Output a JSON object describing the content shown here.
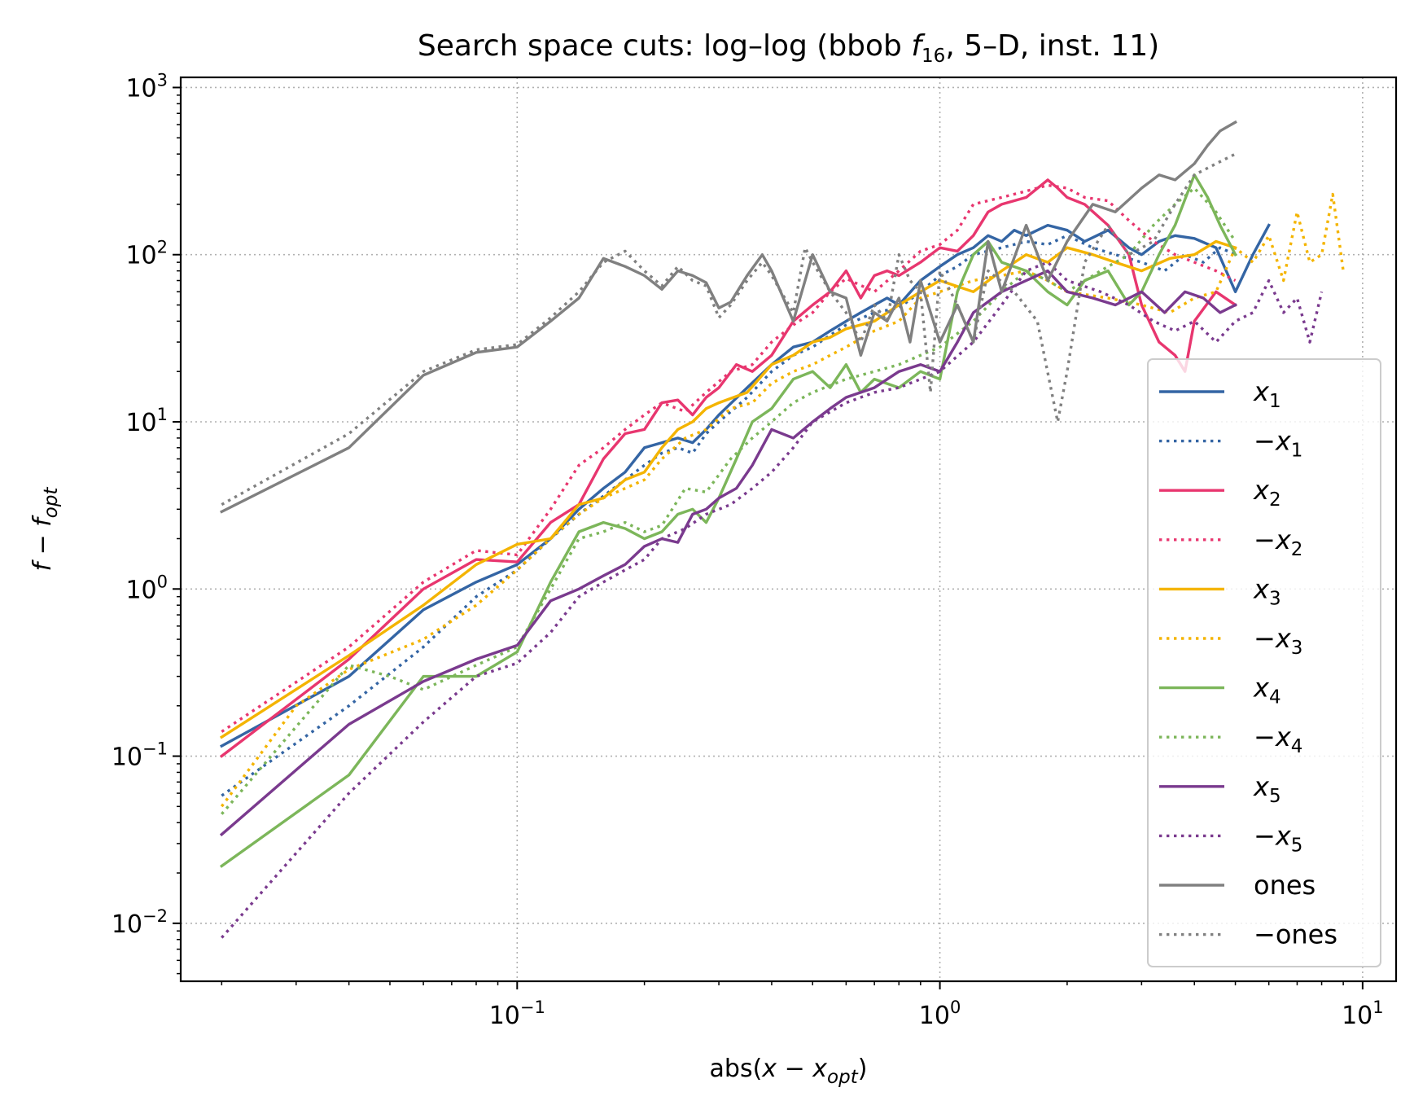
{
  "chart_data": {
    "type": "line",
    "title_parts": [
      "Search space cuts: log–log (bbob ",
      "f",
      "16",
      ", 5–D, inst. 11)"
    ],
    "xlabel_parts": [
      "abs(",
      "x",
      " − ",
      "x",
      "opt",
      ")"
    ],
    "ylabel_parts": [
      "f",
      " − ",
      "f",
      "opt"
    ],
    "xscale": "log",
    "yscale": "log",
    "xlim": [
      0.016,
      12
    ],
    "ylim": [
      0.0045,
      1150
    ],
    "x_ticks": [
      {
        "value": 0.1,
        "base": "10",
        "exp": "−1"
      },
      {
        "value": 1,
        "base": "10",
        "exp": "0"
      },
      {
        "value": 10,
        "base": "10",
        "exp": "1"
      }
    ],
    "y_ticks": [
      {
        "value": 0.01,
        "base": "10",
        "exp": "−2"
      },
      {
        "value": 0.1,
        "base": "10",
        "exp": "−1"
      },
      {
        "value": 1,
        "base": "10",
        "exp": "0"
      },
      {
        "value": 10,
        "base": "10",
        "exp": "1"
      },
      {
        "value": 100,
        "base": "10",
        "exp": "2"
      },
      {
        "value": 1000,
        "base": "10",
        "exp": "3"
      }
    ],
    "grid": true,
    "legend_position": "lower-right",
    "series": [
      {
        "name": "x",
        "sub": "1",
        "prefix": "",
        "color": "#3465a4",
        "dash": "solid",
        "x": [
          0.02,
          0.04,
          0.06,
          0.08,
          0.1,
          0.12,
          0.14,
          0.16,
          0.18,
          0.2,
          0.22,
          0.24,
          0.26,
          0.28,
          0.3,
          0.35,
          0.4,
          0.45,
          0.5,
          0.55,
          0.6,
          0.65,
          0.7,
          0.75,
          0.8,
          0.9,
          1.0,
          1.1,
          1.2,
          1.3,
          1.4,
          1.5,
          1.6,
          1.8,
          2.0,
          2.2,
          2.5,
          2.8,
          3.0,
          3.3,
          3.6,
          4.0,
          4.5,
          5.0,
          5.5,
          6.0
        ],
        "y": [
          0.115,
          0.3,
          0.75,
          1.1,
          1.4,
          2.0,
          3.0,
          4.0,
          5.0,
          7.0,
          7.5,
          8.0,
          7.5,
          9.0,
          11.0,
          16.0,
          22.0,
          28.0,
          30.0,
          35.0,
          40.0,
          45.0,
          50.0,
          55.0,
          50.0,
          70.0,
          85.0,
          100.0,
          110.0,
          130.0,
          120.0,
          140.0,
          130.0,
          150.0,
          140.0,
          120.0,
          140.0,
          110.0,
          100.0,
          120.0,
          130.0,
          125.0,
          110.0,
          60.0,
          100.0,
          150.0
        ]
      },
      {
        "name": "x",
        "sub": "1",
        "prefix": "−",
        "color": "#3465a4",
        "dash": "dotted",
        "x": [
          0.02,
          0.04,
          0.06,
          0.08,
          0.1,
          0.12,
          0.14,
          0.16,
          0.18,
          0.2,
          0.22,
          0.24,
          0.26,
          0.28,
          0.3,
          0.35,
          0.4,
          0.45,
          0.5,
          0.55,
          0.6,
          0.7,
          0.8,
          0.9,
          1.0,
          1.1,
          1.2,
          1.4,
          1.6,
          1.8,
          2.0,
          2.3,
          2.6,
          3.0,
          3.4,
          3.8,
          4.2,
          4.6,
          5.0
        ],
        "y": [
          0.058,
          0.2,
          0.45,
          0.9,
          1.3,
          2.0,
          2.8,
          3.6,
          4.5,
          5.5,
          6.5,
          7.0,
          6.5,
          8.5,
          10.0,
          14.0,
          20.0,
          25.0,
          28.0,
          33.0,
          38.0,
          45.0,
          48.0,
          60.0,
          75.0,
          85.0,
          100.0,
          110.0,
          120.0,
          115.0,
          130.0,
          110.0,
          100.0,
          90.0,
          80.0,
          100.0,
          90.0,
          110.0,
          100.0
        ]
      },
      {
        "name": "x",
        "sub": "2",
        "prefix": "",
        "color": "#e8366f",
        "dash": "solid",
        "x": [
          0.02,
          0.04,
          0.06,
          0.08,
          0.1,
          0.12,
          0.14,
          0.16,
          0.18,
          0.2,
          0.22,
          0.24,
          0.26,
          0.28,
          0.3,
          0.33,
          0.36,
          0.4,
          0.45,
          0.5,
          0.55,
          0.6,
          0.65,
          0.7,
          0.75,
          0.8,
          0.9,
          1.0,
          1.1,
          1.2,
          1.3,
          1.4,
          1.6,
          1.8,
          1.9,
          2.0,
          2.2,
          2.5,
          2.8,
          3.0,
          3.3,
          3.6,
          3.8,
          4.0,
          4.5,
          5.0
        ],
        "y": [
          0.1,
          0.38,
          1.0,
          1.5,
          1.45,
          2.5,
          3.2,
          6.0,
          8.5,
          9.0,
          13.0,
          13.5,
          11.0,
          14.0,
          16.0,
          22.0,
          20.0,
          25.0,
          40.0,
          50.0,
          60.0,
          80.0,
          55.0,
          75.0,
          80.0,
          75.0,
          90.0,
          110.0,
          105.0,
          130.0,
          180.0,
          200.0,
          220.0,
          280.0,
          250.0,
          220.0,
          200.0,
          150.0,
          100.0,
          50.0,
          30.0,
          25.0,
          20.0,
          40.0,
          60.0,
          50.0
        ]
      },
      {
        "name": "x",
        "sub": "2",
        "prefix": "−",
        "color": "#e8366f",
        "dash": "dotted",
        "x": [
          0.02,
          0.04,
          0.06,
          0.08,
          0.1,
          0.12,
          0.14,
          0.16,
          0.18,
          0.2,
          0.22,
          0.25,
          0.28,
          0.32,
          0.36,
          0.4,
          0.45,
          0.5,
          0.55,
          0.6,
          0.7,
          0.8,
          0.9,
          1.0,
          1.1,
          1.2,
          1.4,
          1.6,
          1.8,
          2.0,
          2.2,
          2.5,
          2.8,
          3.2,
          3.6,
          4.0,
          4.5,
          5.0
        ],
        "y": [
          0.14,
          0.45,
          1.1,
          1.7,
          1.6,
          3.0,
          5.5,
          7.0,
          9.0,
          11.0,
          13.0,
          11.5,
          15.0,
          20.0,
          22.0,
          30.0,
          38.0,
          45.0,
          60.0,
          72.0,
          60.0,
          80.0,
          105.0,
          115.0,
          140.0,
          200.0,
          220.0,
          240.0,
          260.0,
          250.0,
          220.0,
          210.0,
          160.0,
          120.0,
          100.0,
          90.0,
          80.0,
          70.0
        ]
      },
      {
        "name": "x",
        "sub": "3",
        "prefix": "",
        "color": "#f4b400",
        "dash": "solid",
        "x": [
          0.02,
          0.04,
          0.06,
          0.08,
          0.1,
          0.12,
          0.14,
          0.16,
          0.18,
          0.2,
          0.22,
          0.24,
          0.26,
          0.28,
          0.3,
          0.35,
          0.4,
          0.45,
          0.5,
          0.55,
          0.6,
          0.7,
          0.8,
          0.9,
          1.0,
          1.2,
          1.4,
          1.6,
          1.8,
          2.0,
          2.3,
          2.6,
          3.0,
          3.5,
          4.0,
          4.5,
          5.0
        ],
        "y": [
          0.13,
          0.4,
          0.8,
          1.4,
          1.85,
          2.0,
          3.2,
          3.5,
          4.5,
          5.0,
          7.0,
          9.0,
          10.0,
          12.0,
          13.0,
          15.0,
          22.0,
          25.0,
          30.0,
          32.0,
          36.0,
          40.0,
          50.0,
          60.0,
          70.0,
          60.0,
          80.0,
          100.0,
          90.0,
          110.0,
          100.0,
          90.0,
          80.0,
          95.0,
          100.0,
          120.0,
          110.0
        ]
      },
      {
        "name": "x",
        "sub": "3",
        "prefix": "−",
        "color": "#f4b400",
        "dash": "dotted",
        "x": [
          0.02,
          0.03,
          0.04,
          0.06,
          0.08,
          0.1,
          0.12,
          0.14,
          0.16,
          0.18,
          0.2,
          0.22,
          0.25,
          0.28,
          0.32,
          0.36,
          0.4,
          0.45,
          0.5,
          0.55,
          0.6,
          0.7,
          0.8,
          0.9,
          1.0,
          1.2,
          1.4,
          1.6,
          1.8,
          2.0,
          2.5,
          3.0,
          3.5,
          4.0,
          4.5,
          5.0,
          5.5,
          6.0,
          6.5,
          7.0,
          7.5,
          8.0,
          8.5,
          9.0
        ],
        "y": [
          0.05,
          0.2,
          0.33,
          0.5,
          0.8,
          1.3,
          2.0,
          2.8,
          3.5,
          4.0,
          4.5,
          6.0,
          8.0,
          9.0,
          12.0,
          13.0,
          17.0,
          20.0,
          22.0,
          25.0,
          28.0,
          35.0,
          40.0,
          55.0,
          60.0,
          70.0,
          75.0,
          80.0,
          70.0,
          60.0,
          55.0,
          50.0,
          45.0,
          55.0,
          60.0,
          110.0,
          90.0,
          130.0,
          70.0,
          180.0,
          90.0,
          100.0,
          230.0,
          80.0
        ]
      },
      {
        "name": "x",
        "sub": "4",
        "prefix": "",
        "color": "#7cb65a",
        "dash": "solid",
        "x": [
          0.02,
          0.04,
          0.06,
          0.08,
          0.1,
          0.12,
          0.14,
          0.16,
          0.18,
          0.2,
          0.22,
          0.24,
          0.26,
          0.28,
          0.3,
          0.33,
          0.36,
          0.4,
          0.45,
          0.5,
          0.55,
          0.6,
          0.65,
          0.7,
          0.8,
          0.9,
          1.0,
          1.1,
          1.2,
          1.3,
          1.4,
          1.6,
          1.8,
          2.0,
          2.2,
          2.5,
          2.8,
          3.0,
          3.3,
          3.6,
          4.0,
          4.3,
          4.6,
          5.0
        ],
        "y": [
          0.022,
          0.077,
          0.3,
          0.3,
          0.42,
          1.1,
          2.2,
          2.5,
          2.3,
          2.0,
          2.2,
          2.8,
          3.0,
          2.5,
          3.5,
          6.0,
          10.0,
          12.0,
          18.0,
          20.0,
          16.0,
          22.0,
          15.0,
          18.0,
          16.0,
          20.0,
          18.0,
          60.0,
          100.0,
          120.0,
          90.0,
          80.0,
          60.0,
          50.0,
          70.0,
          80.0,
          50.0,
          60.0,
          100.0,
          150.0,
          300.0,
          220.0,
          150.0,
          100.0
        ]
      },
      {
        "name": "x",
        "sub": "4",
        "prefix": "−",
        "color": "#7cb65a",
        "dash": "dotted",
        "x": [
          0.02,
          0.03,
          0.04,
          0.05,
          0.06,
          0.08,
          0.1,
          0.12,
          0.14,
          0.16,
          0.18,
          0.2,
          0.22,
          0.25,
          0.28,
          0.32,
          0.36,
          0.4,
          0.45,
          0.5,
          0.6,
          0.7,
          0.8,
          0.9,
          1.0,
          1.2,
          1.4,
          1.6,
          1.8,
          2.0,
          2.4,
          2.8,
          3.2,
          3.6,
          4.0,
          4.5,
          5.0
        ],
        "y": [
          0.045,
          0.15,
          0.35,
          0.3,
          0.25,
          0.35,
          0.45,
          1.0,
          2.0,
          2.2,
          2.5,
          2.2,
          2.4,
          4.0,
          3.8,
          6.0,
          8.0,
          10.0,
          13.0,
          15.0,
          18.0,
          20.0,
          22.0,
          25.0,
          28.0,
          40.0,
          60.0,
          80.0,
          70.0,
          60.0,
          80.0,
          100.0,
          150.0,
          200.0,
          250.0,
          180.0,
          120.0
        ]
      },
      {
        "name": "x",
        "sub": "5",
        "prefix": "",
        "color": "#7a3a8e",
        "dash": "solid",
        "x": [
          0.02,
          0.04,
          0.06,
          0.08,
          0.1,
          0.12,
          0.14,
          0.16,
          0.18,
          0.2,
          0.22,
          0.24,
          0.26,
          0.28,
          0.3,
          0.33,
          0.36,
          0.4,
          0.45,
          0.5,
          0.55,
          0.6,
          0.7,
          0.8,
          0.9,
          1.0,
          1.1,
          1.2,
          1.4,
          1.6,
          1.8,
          2.0,
          2.3,
          2.6,
          3.0,
          3.4,
          3.8,
          4.2,
          4.6,
          5.0
        ],
        "y": [
          0.034,
          0.155,
          0.28,
          0.38,
          0.46,
          0.85,
          1.0,
          1.2,
          1.4,
          1.8,
          2.0,
          1.9,
          2.8,
          3.0,
          3.5,
          4.0,
          5.5,
          9.0,
          8.0,
          10.0,
          12.0,
          14.0,
          16.0,
          20.0,
          22.0,
          20.0,
          30.0,
          45.0,
          60.0,
          70.0,
          80.0,
          60.0,
          55.0,
          50.0,
          60.0,
          45.0,
          60.0,
          55.0,
          45.0,
          50.0
        ]
      },
      {
        "name": "x",
        "sub": "5",
        "prefix": "−",
        "color": "#7a3a8e",
        "dash": "dotted",
        "x": [
          0.02,
          0.04,
          0.06,
          0.08,
          0.1,
          0.12,
          0.14,
          0.16,
          0.18,
          0.2,
          0.22,
          0.25,
          0.28,
          0.32,
          0.36,
          0.4,
          0.45,
          0.5,
          0.6,
          0.7,
          0.8,
          0.9,
          1.0,
          1.2,
          1.4,
          1.6,
          1.8,
          2.0,
          2.4,
          2.8,
          3.2,
          3.6,
          4.0,
          4.5,
          5.0,
          5.5,
          6.0,
          6.5,
          7.0,
          7.5,
          8.0
        ],
        "y": [
          0.0082,
          0.06,
          0.16,
          0.3,
          0.36,
          0.55,
          0.9,
          1.1,
          1.3,
          1.5,
          2.0,
          2.3,
          2.8,
          3.2,
          4.0,
          5.0,
          7.0,
          10.0,
          13.0,
          15.0,
          16.0,
          18.0,
          20.0,
          30.0,
          50.0,
          80.0,
          90.0,
          70.0,
          60.0,
          50.0,
          40.0,
          35.0,
          40.0,
          30.0,
          40.0,
          45.0,
          70.0,
          45.0,
          55.0,
          30.0,
          60.0
        ]
      },
      {
        "name": "ones",
        "sub": "",
        "prefix": "",
        "color": "#808080",
        "dash": "solid",
        "x": [
          0.02,
          0.04,
          0.06,
          0.08,
          0.1,
          0.12,
          0.14,
          0.16,
          0.18,
          0.2,
          0.22,
          0.24,
          0.26,
          0.28,
          0.3,
          0.32,
          0.35,
          0.38,
          0.4,
          0.45,
          0.5,
          0.55,
          0.6,
          0.65,
          0.7,
          0.75,
          0.8,
          0.85,
          0.9,
          1.0,
          1.1,
          1.2,
          1.3,
          1.4,
          1.6,
          1.8,
          2.0,
          2.3,
          2.6,
          3.0,
          3.3,
          3.6,
          4.0,
          4.3,
          4.6,
          5.0
        ],
        "y": [
          2.9,
          7.0,
          19.0,
          26.0,
          28.0,
          40.0,
          55.0,
          95.0,
          85.0,
          75.0,
          62.0,
          80.0,
          75.0,
          68.0,
          48.0,
          52.0,
          75.0,
          100.0,
          80.0,
          40.0,
          100.0,
          60.0,
          55.0,
          25.0,
          45.0,
          40.0,
          55.0,
          30.0,
          70.0,
          30.0,
          50.0,
          30.0,
          120.0,
          60.0,
          150.0,
          70.0,
          120.0,
          200.0,
          180.0,
          250.0,
          300.0,
          280.0,
          350.0,
          450.0,
          550.0,
          620.0
        ]
      },
      {
        "name": "ones",
        "sub": "",
        "prefix": "−",
        "color": "#808080",
        "dash": "dotted",
        "x": [
          0.02,
          0.04,
          0.06,
          0.08,
          0.1,
          0.12,
          0.14,
          0.16,
          0.18,
          0.2,
          0.22,
          0.24,
          0.26,
          0.28,
          0.3,
          0.32,
          0.35,
          0.38,
          0.4,
          0.45,
          0.48,
          0.5,
          0.55,
          0.6,
          0.65,
          0.7,
          0.75,
          0.8,
          0.85,
          0.9,
          0.95,
          1.0,
          1.1,
          1.2,
          1.3,
          1.5,
          1.7,
          1.9,
          2.0,
          2.2,
          2.5,
          2.8,
          3.2,
          3.6,
          4.0,
          4.5,
          5.0
        ],
        "y": [
          3.2,
          8.5,
          20.0,
          27.0,
          29.0,
          42.0,
          60.0,
          90.0,
          105.0,
          80.0,
          65.0,
          85.0,
          70.0,
          65.0,
          42.0,
          50.0,
          70.0,
          90.0,
          75.0,
          45.0,
          110.0,
          90.0,
          60.0,
          45.0,
          30.0,
          50.0,
          40.0,
          100.0,
          70.0,
          60.0,
          15.0,
          80.0,
          50.0,
          30.0,
          80.0,
          60.0,
          40.0,
          10.0,
          20.0,
          90.0,
          150.0,
          100.0,
          120.0,
          200.0,
          300.0,
          350.0,
          400.0
        ]
      }
    ]
  }
}
